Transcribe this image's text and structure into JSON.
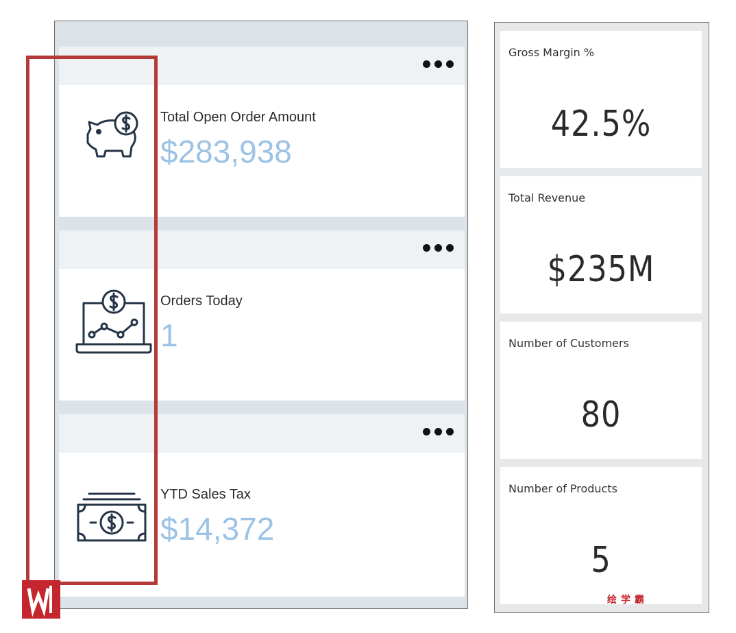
{
  "left_cards": [
    {
      "title": "Total Open Order Amount",
      "value": "$283,938",
      "icon": "piggy-bank-dollar-icon"
    },
    {
      "title": "Orders Today",
      "value": "1",
      "icon": "laptop-dollar-chart-icon"
    },
    {
      "title": "YTD Sales Tax",
      "value": "$14,372",
      "icon": "cash-stack-icon"
    }
  ],
  "right_tiles": [
    {
      "title": "Gross Margin %",
      "value": "42.5%"
    },
    {
      "title": "Total Revenue",
      "value": "$235M"
    },
    {
      "title": "Number of Customers",
      "value": "80"
    },
    {
      "title": "Number of Products",
      "value": "5"
    }
  ],
  "colors": {
    "kpi_value": "#9cc3e6",
    "icon_stroke": "#243447",
    "highlight": "#b43a3a",
    "panel_bg": "#dbe2e8"
  },
  "watermark": {
    "text": "绘学霸"
  }
}
